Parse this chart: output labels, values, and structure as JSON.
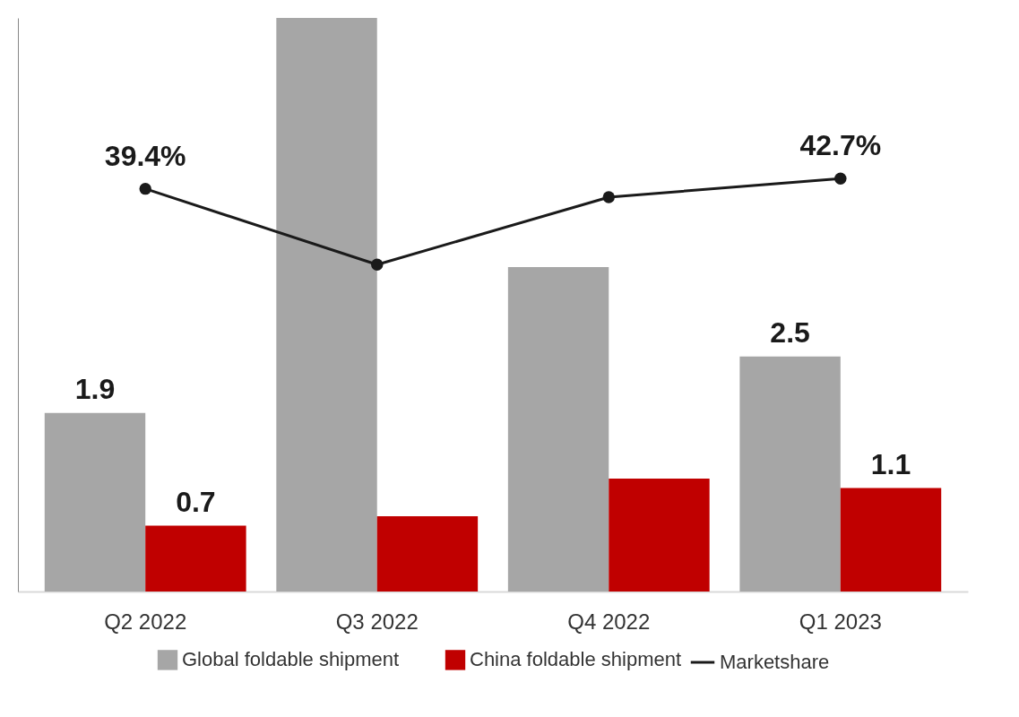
{
  "chart_data": {
    "type": "bar",
    "categories": [
      "Q2 2022",
      "Q3 2022",
      "Q4 2022",
      "Q1 2023"
    ],
    "legend": "bottom",
    "grid": false,
    "marker": "circle",
    "line_style": "solid",
    "series": [
      {
        "name": "Global foldable shipment",
        "color": "#a6a6a6",
        "values": [
          1.9,
          6.1,
          3.45,
          2.5
        ],
        "value_labels": [
          "1.9",
          null,
          null,
          "2.5"
        ]
      },
      {
        "name": "China foldable shipment",
        "color": "#c00000",
        "values": [
          0.7,
          0.8,
          1.2,
          1.1
        ],
        "value_labels": [
          "0.7",
          null,
          null,
          "1.1"
        ]
      },
      {
        "name": "Marketshare",
        "type": "line",
        "axis": "y2",
        "color": "#1a1a1a",
        "values": [
          39.4,
          15,
          36.7,
          42.7
        ],
        "value_labels": [
          "39.4%",
          null,
          null,
          "42.7%"
        ]
      }
    ]
  }
}
